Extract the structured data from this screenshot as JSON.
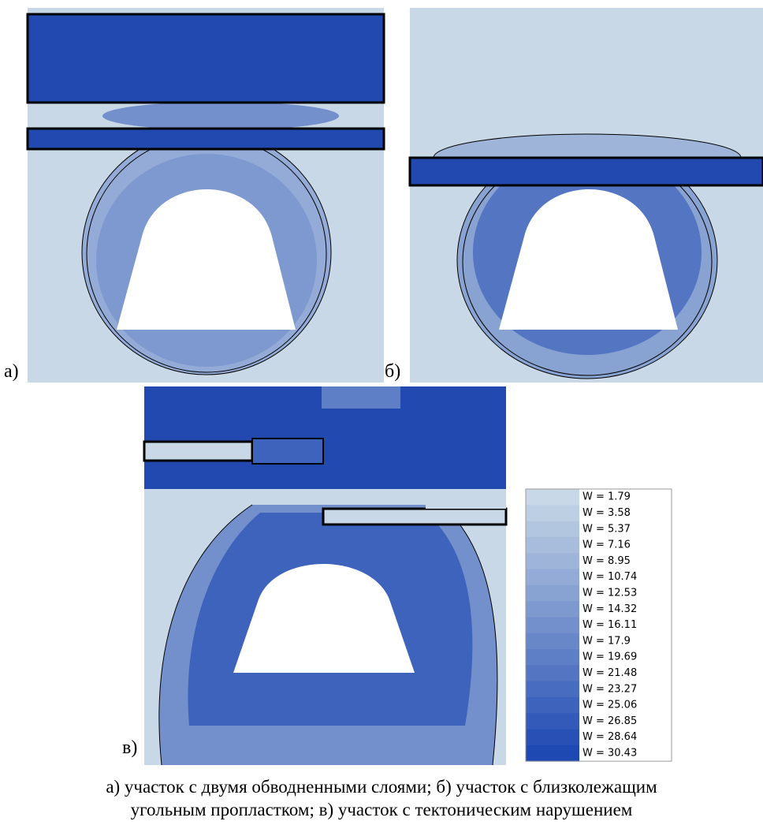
{
  "panels": [
    {
      "label": "а)"
    },
    {
      "label": "б)"
    },
    {
      "label": "в)"
    }
  ],
  "legend": {
    "entries": [
      {
        "label": "W = 1.79",
        "color": "#c8d8e6"
      },
      {
        "label": "W = 3.58",
        "color": "#bdcfe3"
      },
      {
        "label": "W = 5.37",
        "color": "#b3c6df"
      },
      {
        "label": "W = 7.16",
        "color": "#a8bddc"
      },
      {
        "label": "W = 8.95",
        "color": "#9eb4d9"
      },
      {
        "label": "W = 10.74",
        "color": "#93abd6"
      },
      {
        "label": "W = 12.53",
        "color": "#88a2d2"
      },
      {
        "label": "W = 14.32",
        "color": "#7e99cf"
      },
      {
        "label": "W = 16.11",
        "color": "#7390cc"
      },
      {
        "label": "W = 17.9",
        "color": "#6887c9"
      },
      {
        "label": "W = 19.69",
        "color": "#5e7ec5"
      },
      {
        "label": "W = 21.48",
        "color": "#5375c2"
      },
      {
        "label": "W = 23.27",
        "color": "#486cbf"
      },
      {
        "label": "W = 25.06",
        "color": "#3e63bc"
      },
      {
        "label": "W = 26.85",
        "color": "#335ab8"
      },
      {
        "label": "W = 28.64",
        "color": "#2951b5"
      },
      {
        "label": "W = 30.43",
        "color": "#1e48b2"
      }
    ]
  },
  "caption": {
    "lines": [
      "а) участок с двумя обводненными слоями; б) участок с близколежащим",
      "угольным пропластком; в) участок с тектоническим нарушением"
    ]
  }
}
